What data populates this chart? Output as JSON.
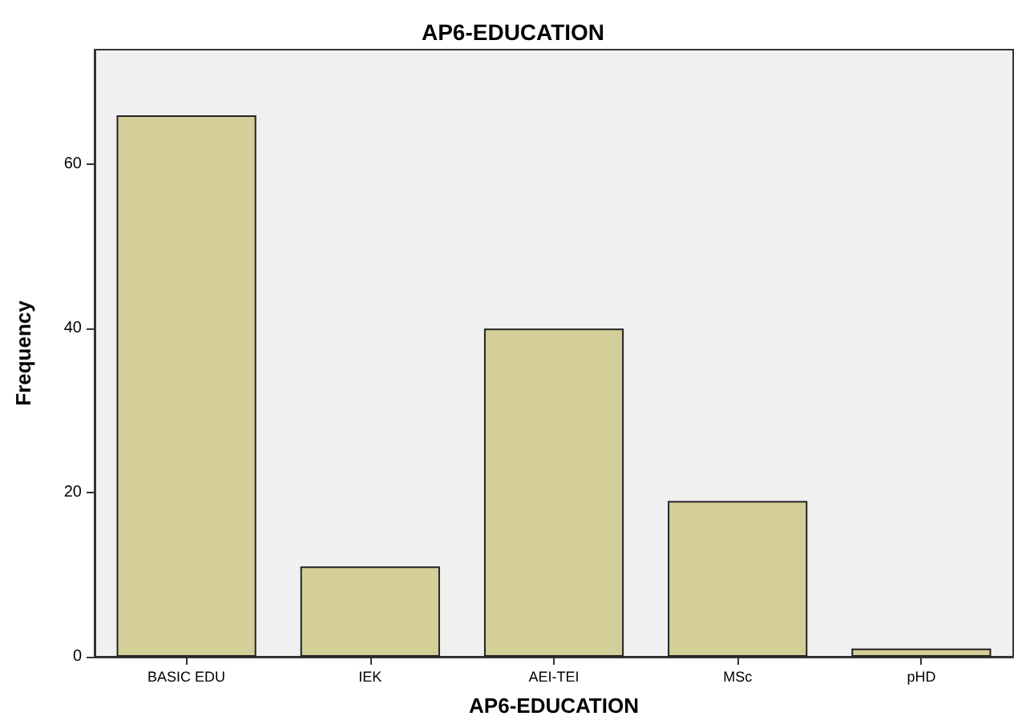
{
  "chart_data": {
    "type": "bar",
    "title": "AP6-EDUCATION",
    "xlabel": "AP6-EDUCATION",
    "ylabel": "Frequency",
    "categories": [
      "BASIC EDU",
      "IEK",
      "AEI-TEI",
      "MSc",
      "pHD"
    ],
    "values": [
      66,
      11,
      40,
      19,
      1
    ],
    "color": "#d4cf98",
    "ylim": [
      0,
      74
    ],
    "yticks": [
      0,
      20,
      40,
      60
    ],
    "grid": false
  }
}
